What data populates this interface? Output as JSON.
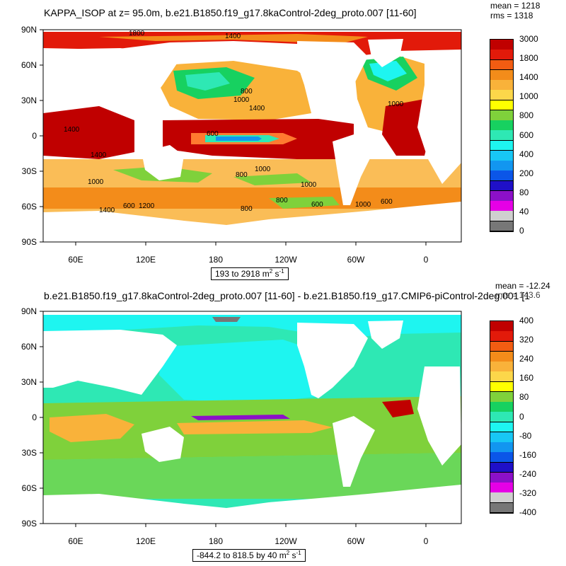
{
  "panels": [
    {
      "title": "KAPPA_ISOP at z=  95.0m, b.e21.B1850.f19_g17.8kaControl-2deg_proto.007 [11-60]",
      "mean": "mean = 1218",
      "rms": "rms = 1318",
      "range_prefix": "193 to 2918 m",
      "range_exp1": "2",
      "range_mid": " s",
      "range_exp2": "-1",
      "lat_ticks": [
        "90N",
        "60N",
        "30N",
        "0",
        "30S",
        "60S",
        "90S"
      ],
      "lon_ticks": [
        "60E",
        "120E",
        "180",
        "120W",
        "60W",
        "0"
      ],
      "contour_labels": [
        "1800",
        "1400",
        "1000",
        "800",
        "600",
        "1400",
        "1000",
        "1400",
        "800",
        "1000",
        "1000",
        "1400",
        "1000",
        "800",
        "600",
        "800",
        "1000",
        "1200",
        "600",
        "600",
        "1400"
      ],
      "colorbar": {
        "labels": [
          "3000",
          "1800",
          "1400",
          "1000",
          "800",
          "600",
          "400",
          "200",
          "80",
          "40",
          "0"
        ],
        "colors": [
          "#c00000",
          "#e21a0a",
          "#f25c12",
          "#f38c1a",
          "#f9b23a",
          "#fcd74a",
          "#ffff00",
          "#7fd13b",
          "#17d160",
          "#2ee8b4",
          "#1ef5f0",
          "#18c7f5",
          "#1296f0",
          "#0b56e8",
          "#1f10c8",
          "#8c10c8",
          "#e600e6",
          "#cfcfcf",
          "#777777"
        ]
      }
    },
    {
      "title": "b.e21.B1850.f19_g17.8kaControl-2deg_proto.007 [11-60] - b.e21.B1850.f19_g17.CMIP6-piControl-2deg.001 [1",
      "mean": "mean = -12.24",
      "rms": "rms = 143.6",
      "range_prefix": "-844.2 to 818.5 by 40 m",
      "range_exp1": "2",
      "range_mid": " s",
      "range_exp2": "-1",
      "lat_ticks": [
        "90N",
        "60N",
        "30N",
        "0",
        "30S",
        "60S",
        "90S"
      ],
      "lon_ticks": [
        "60E",
        "120E",
        "180",
        "120W",
        "60W",
        "0"
      ],
      "colorbar": {
        "labels": [
          "400",
          "320",
          "240",
          "160",
          "80",
          "0",
          "-80",
          "-160",
          "-240",
          "-320",
          "-400"
        ],
        "colors": [
          "#c00000",
          "#e21a0a",
          "#f25c12",
          "#f38c1a",
          "#f9b23a",
          "#fcd74a",
          "#ffff00",
          "#7fd13b",
          "#17d160",
          "#2ee8b4",
          "#1ef5f0",
          "#18c7f5",
          "#1296f0",
          "#0b56e8",
          "#1f10c8",
          "#8c10c8",
          "#e600e6",
          "#cfcfcf",
          "#777777"
        ]
      }
    }
  ]
}
